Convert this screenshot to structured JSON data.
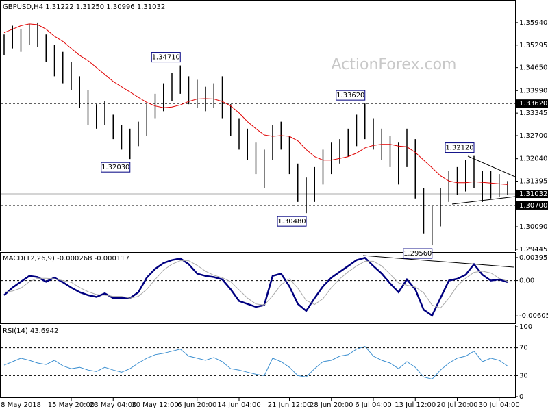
{
  "chart_data": [
    {
      "type": "price-bars",
      "title": "GBPUSD,H4  1.31222 1.31250 1.30996 1.31032",
      "watermark": "ActionForex.com",
      "bar_color": "#000000",
      "highs": [
        1.356,
        1.3585,
        1.3575,
        1.359,
        1.3594,
        1.356,
        1.353,
        1.351,
        1.348,
        1.344,
        1.34,
        1.336,
        1.337,
        1.333,
        1.33,
        1.329,
        1.331,
        1.336,
        1.339,
        1.342,
        1.345,
        1.3471,
        1.344,
        1.343,
        1.341,
        1.342,
        1.344,
        1.336,
        1.332,
        1.329,
        1.325,
        1.323,
        1.33,
        1.331,
        1.327,
        1.319,
        1.315,
        1.318,
        1.323,
        1.325,
        1.326,
        1.329,
        1.333,
        1.3362,
        1.332,
        1.329,
        1.327,
        1.325,
        1.329,
        1.326,
        1.312,
        1.307,
        1.312,
        1.317,
        1.318,
        1.32,
        1.3212,
        1.317,
        1.317,
        1.316,
        1.314
      ],
      "lows": [
        1.35,
        1.352,
        1.351,
        1.353,
        1.3525,
        1.348,
        1.344,
        1.342,
        1.34,
        1.335,
        1.33,
        1.329,
        1.33,
        1.326,
        1.323,
        1.3203,
        1.324,
        1.327,
        1.332,
        1.334,
        1.337,
        1.339,
        1.336,
        1.335,
        1.334,
        1.335,
        1.332,
        1.327,
        1.323,
        1.32,
        1.316,
        1.312,
        1.32,
        1.323,
        1.316,
        1.308,
        1.3048,
        1.308,
        1.313,
        1.316,
        1.319,
        1.321,
        1.324,
        1.326,
        1.323,
        1.32,
        1.318,
        1.313,
        1.318,
        1.309,
        1.299,
        1.2956,
        1.301,
        1.308,
        1.31,
        1.311,
        1.312,
        1.308,
        1.309,
        1.3095,
        1.31
      ],
      "ma": {
        "color": "#e00000",
        "values": [
          1.3565,
          1.3575,
          1.3585,
          1.359,
          1.3588,
          1.3575,
          1.3555,
          1.354,
          1.352,
          1.35,
          1.3485,
          1.3465,
          1.3445,
          1.3425,
          1.341,
          1.3395,
          1.338,
          1.3365,
          1.3355,
          1.335,
          1.3352,
          1.3358,
          1.3368,
          1.3375,
          1.3376,
          1.3375,
          1.3368,
          1.3355,
          1.3335,
          1.331,
          1.329,
          1.3272,
          1.3268,
          1.327,
          1.3268,
          1.3255,
          1.323,
          1.321,
          1.32,
          1.32,
          1.3205,
          1.321,
          1.322,
          1.3235,
          1.3242,
          1.3245,
          1.3245,
          1.324,
          1.3238,
          1.3222,
          1.32,
          1.3178,
          1.3155,
          1.314,
          1.3135,
          1.3135,
          1.3138,
          1.3136,
          1.3134,
          1.3132,
          1.313
        ]
      },
      "ylim": [
        1.29404,
        1.36566
      ],
      "yticks": [
        {
          "value": 1.3594,
          "label": "1.35940"
        },
        {
          "value": 1.35295,
          "label": "1.35295"
        },
        {
          "value": 1.3465,
          "label": "1.34650"
        },
        {
          "value": 1.3399,
          "label": "1.33990"
        },
        {
          "value": 1.33345,
          "label": "1.33345"
        },
        {
          "value": 1.327,
          "label": "1.32700"
        },
        {
          "value": 1.3204,
          "label": "1.32040"
        },
        {
          "value": 1.31395,
          "label": "1.31395"
        },
        {
          "value": 1.3009,
          "label": "1.30090"
        },
        {
          "value": 1.29445,
          "label": "1.29445"
        }
      ],
      "levels": [
        {
          "value": 1.3362,
          "label": "1.33620",
          "style": "dashed"
        },
        {
          "value": 1.31032,
          "label": "1.31032",
          "style": "solid"
        },
        {
          "value": 1.307,
          "label": "1.30700",
          "style": "dashed"
        }
      ],
      "annotations": [
        {
          "value": 1.3471,
          "label": "1.34710"
        },
        {
          "value": 1.3203,
          "label": "1.32030"
        },
        {
          "value": 1.3048,
          "label": "1.30480"
        },
        {
          "value": 1.3362,
          "label": "1.33620"
        },
        {
          "value": 1.2956,
          "label": "1.29560"
        },
        {
          "value": 1.3212,
          "label": "1.32120"
        }
      ]
    },
    {
      "type": "macd",
      "title": "MACD(12,26,9) -0.000268 -0.000117",
      "series": [
        {
          "color": "#000080",
          "values": [
            -0.0025,
            -0.0012,
            -0.0002,
            0.0008,
            0.0006,
            -0.0002,
            0.0005,
            -0.0003,
            -0.0012,
            -0.002,
            -0.0025,
            -0.0028,
            -0.0022,
            -0.003,
            -0.003,
            -0.003,
            -0.002,
            0.0005,
            0.002,
            0.003,
            0.0035,
            0.0038,
            0.0028,
            0.0012,
            0.0008,
            0.0006,
            0.0002,
            -0.0015,
            -0.0035,
            -0.004,
            -0.0045,
            -0.0042,
            0.0008,
            0.0012,
            -0.001,
            -0.004,
            -0.0052,
            -0.003,
            -0.001,
            0.0005,
            0.0015,
            0.0025,
            0.0035,
            0.0039,
            0.0025,
            0.0012,
            -0.0005,
            -0.002,
            0.0002,
            -0.0015,
            -0.005,
            -0.006,
            -0.003,
            0.0,
            0.0003,
            0.001,
            0.0028,
            0.001,
            0.0,
            0.0002,
            -0.000268
          ]
        },
        {
          "color": "#a8a8a8",
          "values": [
            -0.002,
            -0.0018,
            -0.0013,
            -0.0002,
            0.0004,
            0.0004,
            0.0003,
            0.0,
            -0.0003,
            -0.0012,
            -0.0019,
            -0.0024,
            -0.0025,
            -0.0027,
            -0.0027,
            -0.003,
            -0.0027,
            -0.0015,
            0.0002,
            0.0018,
            0.0028,
            0.0034,
            0.0034,
            0.0026,
            0.0016,
            0.0009,
            0.0005,
            -0.0002,
            -0.0016,
            -0.003,
            -0.004,
            -0.0042,
            -0.0026,
            -0.0007,
            0.0003,
            -0.0013,
            -0.0034,
            -0.0041,
            -0.0031,
            -0.0012,
            0.0003,
            0.0015,
            0.0025,
            0.0033,
            0.0033,
            0.0025,
            0.0011,
            -0.0004,
            -0.0008,
            -0.0011,
            -0.0021,
            -0.0042,
            -0.0047,
            -0.003,
            -0.0009,
            0.0004,
            0.0014,
            0.0016,
            0.0013,
            0.0004,
            -0.000117
          ]
        }
      ],
      "ylim": [
        -0.00732,
        0.00476
      ],
      "yticks": [
        0.003951,
        {
          "value": 0,
          "label": "0.00"
        },
        -0.006055
      ]
    },
    {
      "type": "rsi",
      "title": "RSI(14) 43.6942",
      "series": [
        {
          "color": "#3c8fd0",
          "values": [
            45,
            50,
            55,
            52,
            48,
            46,
            52,
            44,
            40,
            42,
            38,
            36,
            42,
            38,
            35,
            40,
            48,
            55,
            60,
            62,
            65,
            68,
            58,
            55,
            52,
            56,
            50,
            40,
            38,
            35,
            32,
            30,
            55,
            50,
            42,
            30,
            28,
            40,
            50,
            52,
            58,
            60,
            68,
            72,
            58,
            52,
            48,
            40,
            50,
            42,
            28,
            25,
            38,
            48,
            55,
            58,
            65,
            50,
            55,
            52,
            43.6942
          ]
        }
      ],
      "ylim": [
        -1,
        102
      ],
      "yticks": [
        0,
        30,
        70,
        100
      ],
      "categories": [
        null,
        null,
        "8 May 2018",
        null,
        null,
        null,
        null,
        null,
        "15 May 20:00",
        null,
        null,
        null,
        null,
        "23 May 04:00",
        null,
        null,
        null,
        null,
        "30 May 12:00",
        null,
        null,
        null,
        null,
        "6 Jun 20:00",
        null,
        null,
        null,
        null,
        "14 Jun 04:00",
        null,
        null,
        null,
        null,
        null,
        "21 Jun 12:00",
        null,
        null,
        null,
        null,
        "28 Jun 20:00",
        null,
        null,
        null,
        null,
        "6 Jul 04:00",
        null,
        null,
        null,
        null,
        "13 Jul 12:00",
        null,
        null,
        null,
        null,
        "20 Jul 20:00",
        null,
        null,
        null,
        null,
        "30 Jul 04:00",
        null
      ]
    }
  ]
}
